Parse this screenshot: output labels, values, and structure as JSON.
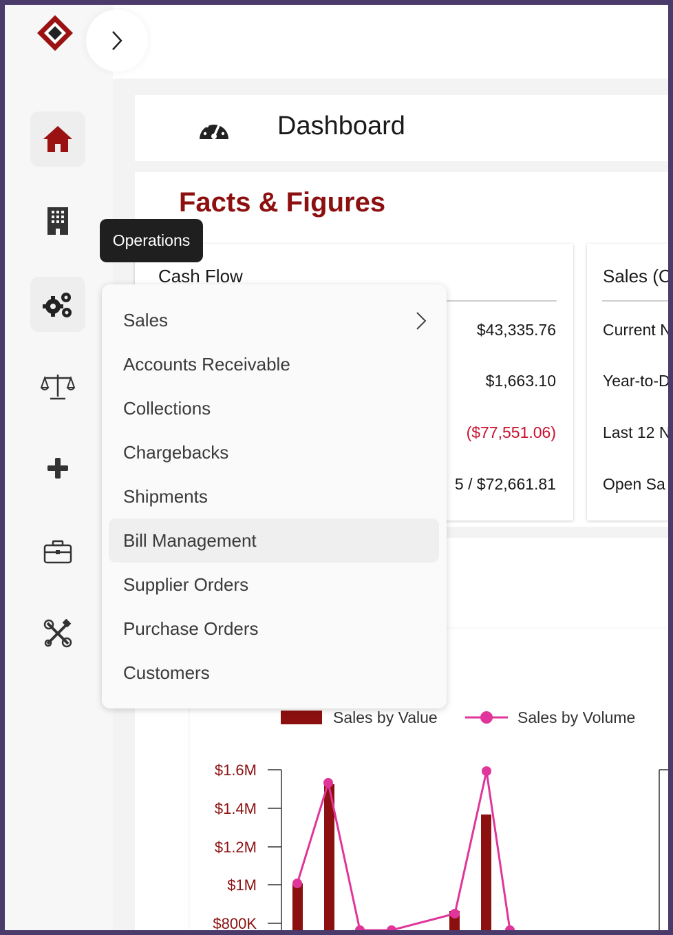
{
  "header": {
    "title": "Dashboard",
    "icon": "gauge-icon"
  },
  "sidebar": {
    "tooltip": "Operations",
    "items": [
      {
        "name": "home",
        "icon": "home-icon",
        "active": true
      },
      {
        "name": "building",
        "icon": "building-icon"
      },
      {
        "name": "operations",
        "icon": "gears-icon"
      },
      {
        "name": "balance",
        "icon": "scale-icon"
      },
      {
        "name": "add",
        "icon": "plus-icon"
      },
      {
        "name": "briefcase",
        "icon": "briefcase-icon"
      },
      {
        "name": "tools",
        "icon": "tools-icon"
      }
    ]
  },
  "main": {
    "section_title": "Facts & Figures"
  },
  "cash_flow": {
    "title": "Cash Flow",
    "values": [
      "$43,335.76",
      "$1,663.10",
      "($77,551.06)",
      "5 / $72,661.81"
    ]
  },
  "sales_card": {
    "title": "Sales (C",
    "rows": [
      "Current N",
      "Year-to-D",
      "Last 12 N",
      "Open Sa"
    ]
  },
  "menu": {
    "items": [
      {
        "label": "Sales",
        "has_submenu": true
      },
      {
        "label": "Accounts Receivable"
      },
      {
        "label": "Collections"
      },
      {
        "label": "Chargebacks"
      },
      {
        "label": "Shipments"
      },
      {
        "label": "Bill Management",
        "hovered": true
      },
      {
        "label": "Supplier Orders"
      },
      {
        "label": "Purchase Orders"
      },
      {
        "label": "Customers"
      }
    ]
  },
  "chart_data": {
    "type": "bar",
    "legend": [
      "Sales by Value",
      "Sales by Volume"
    ],
    "y_ticks": [
      "$1.6M",
      "$1.4M",
      "$1.2M",
      "$1M",
      "$800K"
    ],
    "colors": {
      "value": "#8c1010",
      "volume": "#e0359a"
    }
  }
}
